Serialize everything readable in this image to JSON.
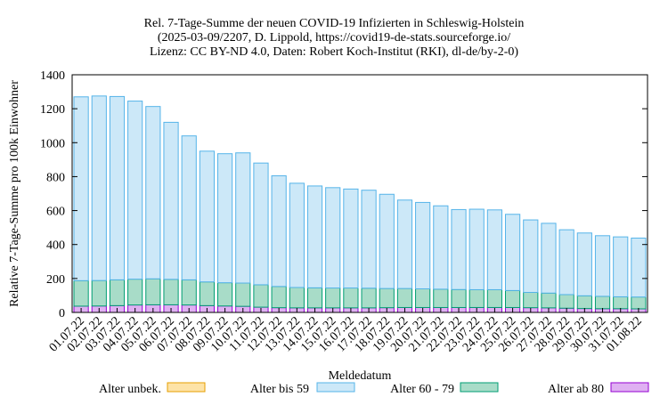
{
  "chart_data": {
    "type": "bar",
    "title_lines": [
      "Rel. 7-Tage-Summe der neuen COVID-19 Infizierten in Schleswig-Holstein",
      "(2025-03-09/2207, D. Lippold, https://covid19-de-stats.sourceforge.io/",
      "Lizenz: CC BY-ND 4.0, Daten: Robert Koch-Institut (RKI), dl-de/by-2-0)"
    ],
    "xlabel": "Meldedatum",
    "ylabel": "Relative 7-Tage-Summe pro 100k Einwohner",
    "ylim": [
      0,
      1400
    ],
    "yticks": [
      0,
      200,
      400,
      600,
      800,
      1000,
      1200,
      1400
    ],
    "stacked": true,
    "grid": false,
    "legend_position": "bottom",
    "categories": [
      "01.07.22",
      "02.07.22",
      "03.07.22",
      "04.07.22",
      "05.07.22",
      "06.07.22",
      "07.07.22",
      "08.07.22",
      "09.07.22",
      "10.07.22",
      "11.07.22",
      "12.07.22",
      "13.07.22",
      "14.07.22",
      "15.07.22",
      "16.07.22",
      "17.07.22",
      "18.07.22",
      "19.07.22",
      "20.07.22",
      "21.07.22",
      "22.07.22",
      "23.07.22",
      "24.07.22",
      "25.07.22",
      "26.07.22",
      "27.07.22",
      "28.07.22",
      "29.07.22",
      "30.07.22",
      "31.07.22",
      "01.08.22"
    ],
    "series": [
      {
        "name": "Alter ab 80",
        "fill": "#dfb0f2",
        "stroke": "#9400d3",
        "values": [
          37,
          38,
          40,
          44,
          45,
          45,
          44,
          40,
          38,
          36,
          31,
          28,
          27,
          27,
          27,
          27,
          27,
          28,
          29,
          29,
          29,
          29,
          29,
          29,
          29,
          28,
          27,
          25,
          23,
          22,
          22,
          21
        ]
      },
      {
        "name": "Alter 60 - 79",
        "fill": "#a8dcc8",
        "stroke": "#009e73",
        "values": [
          150,
          150,
          152,
          152,
          153,
          150,
          148,
          140,
          137,
          137,
          132,
          125,
          120,
          118,
          117,
          117,
          116,
          113,
          112,
          110,
          108,
          106,
          105,
          105,
          100,
          90,
          87,
          80,
          75,
          73,
          70,
          70
        ]
      },
      {
        "name": "Alter bis 59",
        "fill": "#cce8f8",
        "stroke": "#56b4e9",
        "values": [
          1083,
          1087,
          1080,
          1049,
          1015,
          925,
          848,
          770,
          760,
          767,
          717,
          652,
          614,
          600,
          591,
          583,
          577,
          555,
          521,
          509,
          491,
          471,
          474,
          470,
          449,
          427,
          411,
          382,
          370,
          357,
          353,
          347
        ]
      },
      {
        "name": "Alter unbek.",
        "fill": "#fde3a7",
        "stroke": "#e69f00",
        "values": [
          0,
          0,
          0,
          0,
          0,
          0,
          0,
          0,
          0,
          0,
          0,
          0,
          0,
          0,
          0,
          0,
          0,
          0,
          0,
          0,
          0,
          0,
          0,
          0,
          0,
          0,
          0,
          0,
          0,
          0,
          0,
          0
        ]
      }
    ],
    "legend_order": [
      "Alter unbek.",
      "Alter bis 59",
      "Alter 60 - 79",
      "Alter ab 80"
    ]
  }
}
